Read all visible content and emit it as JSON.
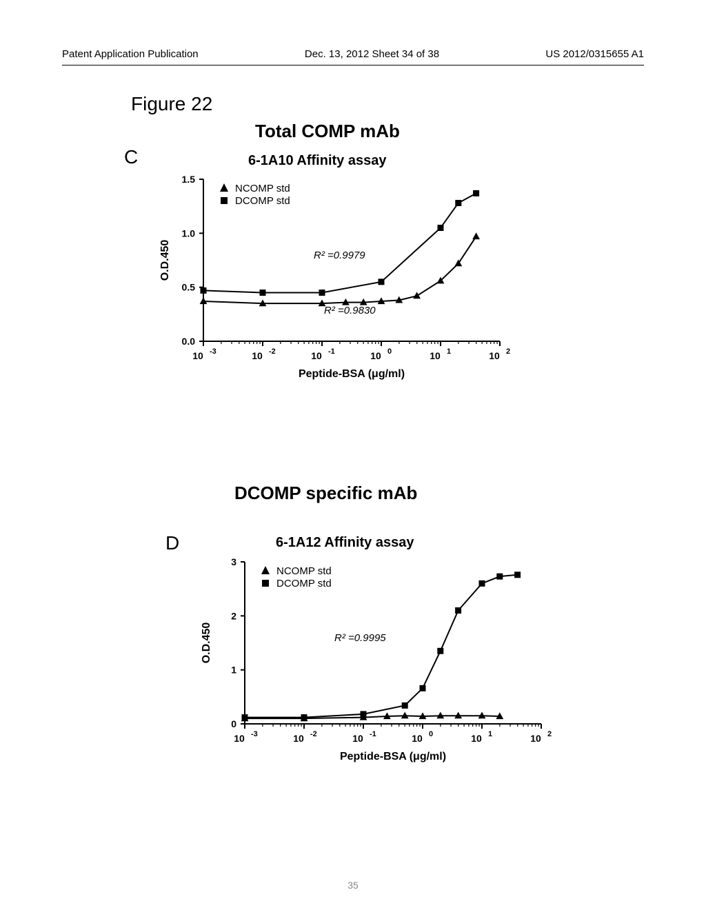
{
  "header": {
    "left": "Patent Application Publication",
    "center": "Dec. 13, 2012  Sheet 34 of 38",
    "right": "US 2012/0315655 A1"
  },
  "figure_label": "Figure 22",
  "page_number": "35",
  "panelC": {
    "letter": "C",
    "main_title": "Total COMP mAb",
    "subtitle": "6-1A10 Affinity assay",
    "ylabel": "O.D.450",
    "xlabel": "Peptide-BSA (μg/ml)",
    "legend": {
      "ncomp": "NCOMP std",
      "dcomp": "DCOMP std"
    },
    "r2_dcomp": "R² =0.9979",
    "r2_ncomp": "R² =0.9830",
    "chart": {
      "type": "line",
      "x_scale": "log",
      "xlim_exp": [
        -3,
        2
      ],
      "ylim": [
        0.0,
        1.5
      ],
      "ytick_step": 0.5,
      "xtick_exp": [
        -3,
        -2,
        -1,
        0,
        1,
        2
      ],
      "background": "#ffffff",
      "axis_color": "#000000",
      "text_color": "#000000",
      "tick_fontsize": 14,
      "label_fontsize": 16,
      "line_width": 2,
      "marker_size": 9,
      "series": [
        {
          "name": "DCOMP std",
          "marker": "square",
          "color": "#000000",
          "points": [
            {
              "x_exp": -3.0,
              "y": 0.47
            },
            {
              "x_exp": -2.0,
              "y": 0.45
            },
            {
              "x_exp": -1.0,
              "y": 0.45
            },
            {
              "x_exp": 0.0,
              "y": 0.55
            },
            {
              "x_exp": 1.0,
              "y": 1.05
            },
            {
              "x_exp": 1.3,
              "y": 1.28
            },
            {
              "x_exp": 1.6,
              "y": 1.37
            }
          ]
        },
        {
          "name": "NCOMP std",
          "marker": "triangle",
          "color": "#000000",
          "points": [
            {
              "x_exp": -3.0,
              "y": 0.37
            },
            {
              "x_exp": -2.0,
              "y": 0.35
            },
            {
              "x_exp": -1.0,
              "y": 0.35
            },
            {
              "x_exp": -0.6,
              "y": 0.36
            },
            {
              "x_exp": -0.3,
              "y": 0.36
            },
            {
              "x_exp": 0.0,
              "y": 0.37
            },
            {
              "x_exp": 0.3,
              "y": 0.38
            },
            {
              "x_exp": 0.6,
              "y": 0.42
            },
            {
              "x_exp": 1.0,
              "y": 0.56
            },
            {
              "x_exp": 1.3,
              "y": 0.72
            },
            {
              "x_exp": 1.6,
              "y": 0.97
            }
          ]
        }
      ]
    }
  },
  "panelD": {
    "letter": "D",
    "main_title": "DCOMP specific mAb",
    "subtitle": "6-1A12 Affinity assay",
    "ylabel": "O.D.450",
    "xlabel": "Peptide-BSA (μg/ml)",
    "legend": {
      "ncomp": "NCOMP std",
      "dcomp": "DCOMP std"
    },
    "r2_dcomp": "R² =0.9995",
    "chart": {
      "type": "line",
      "x_scale": "log",
      "xlim_exp": [
        -3,
        2
      ],
      "ylim": [
        0,
        3
      ],
      "ytick_step": 1,
      "xtick_exp": [
        -3,
        -2,
        -1,
        0,
        1,
        2
      ],
      "background": "#ffffff",
      "axis_color": "#000000",
      "text_color": "#000000",
      "tick_fontsize": 14,
      "label_fontsize": 16,
      "line_width": 2,
      "marker_size": 9,
      "series": [
        {
          "name": "DCOMP std",
          "marker": "square",
          "color": "#000000",
          "points": [
            {
              "x_exp": -3.0,
              "y": 0.12
            },
            {
              "x_exp": -2.0,
              "y": 0.12
            },
            {
              "x_exp": -1.0,
              "y": 0.18
            },
            {
              "x_exp": -0.3,
              "y": 0.34
            },
            {
              "x_exp": 0.0,
              "y": 0.66
            },
            {
              "x_exp": 0.3,
              "y": 1.35
            },
            {
              "x_exp": 0.6,
              "y": 2.1
            },
            {
              "x_exp": 1.0,
              "y": 2.6
            },
            {
              "x_exp": 1.3,
              "y": 2.73
            },
            {
              "x_exp": 1.6,
              "y": 2.76
            }
          ]
        },
        {
          "name": "NCOMP std",
          "marker": "triangle",
          "color": "#000000",
          "points": [
            {
              "x_exp": -3.0,
              "y": 0.1
            },
            {
              "x_exp": -2.0,
              "y": 0.1
            },
            {
              "x_exp": -1.0,
              "y": 0.12
            },
            {
              "x_exp": -0.6,
              "y": 0.14
            },
            {
              "x_exp": -0.3,
              "y": 0.15
            },
            {
              "x_exp": 0.0,
              "y": 0.14
            },
            {
              "x_exp": 0.3,
              "y": 0.15
            },
            {
              "x_exp": 0.6,
              "y": 0.15
            },
            {
              "x_exp": 1.0,
              "y": 0.15
            },
            {
              "x_exp": 1.3,
              "y": 0.14
            }
          ]
        }
      ]
    }
  }
}
